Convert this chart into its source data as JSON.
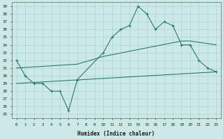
{
  "xlabel": "Humidex (Indice chaleur)",
  "ylabel": "",
  "bg_color": "#cce9e7",
  "grid_color": "#aad4d0",
  "line_color": "#2a7a6a",
  "xlim": [
    -0.5,
    23.5
  ],
  "ylim": [
    24.5,
    39.5
  ],
  "xticks": [
    0,
    1,
    2,
    3,
    4,
    5,
    6,
    7,
    8,
    9,
    10,
    11,
    12,
    13,
    14,
    15,
    16,
    17,
    18,
    19,
    20,
    21,
    22,
    23
  ],
  "yticks": [
    25,
    26,
    27,
    28,
    29,
    30,
    31,
    32,
    33,
    34,
    35,
    36,
    37,
    38,
    39
  ],
  "series1_x": [
    0,
    1,
    2,
    3,
    4,
    5,
    6,
    7,
    10,
    11,
    12,
    13,
    14,
    15,
    16,
    17,
    18,
    19,
    20,
    21,
    22,
    23
  ],
  "series1_y": [
    32,
    30,
    29,
    29,
    28,
    28,
    25.5,
    29.5,
    33,
    35,
    36,
    36.5,
    39,
    38,
    36,
    37,
    36.5,
    34,
    34,
    32,
    31,
    30.5
  ],
  "series2_x": [
    0,
    7,
    10,
    19,
    20,
    23
  ],
  "series2_y": [
    31,
    31.5,
    32.5,
    34.5,
    34.5,
    34
  ],
  "series3_x": [
    0,
    23
  ],
  "series3_y": [
    29,
    30.5
  ],
  "marker": "+"
}
